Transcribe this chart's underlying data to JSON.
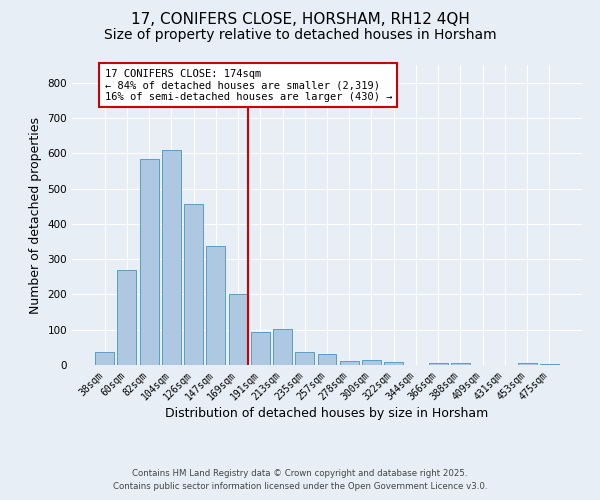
{
  "title": "17, CONIFERS CLOSE, HORSHAM, RH12 4QH",
  "subtitle": "Size of property relative to detached houses in Horsham",
  "xlabel": "Distribution of detached houses by size in Horsham",
  "ylabel": "Number of detached properties",
  "bar_labels": [
    "38sqm",
    "60sqm",
    "82sqm",
    "104sqm",
    "126sqm",
    "147sqm",
    "169sqm",
    "191sqm",
    "213sqm",
    "235sqm",
    "257sqm",
    "278sqm",
    "300sqm",
    "322sqm",
    "344sqm",
    "366sqm",
    "388sqm",
    "409sqm",
    "431sqm",
    "453sqm",
    "475sqm"
  ],
  "bar_values": [
    38,
    268,
    585,
    610,
    457,
    338,
    200,
    93,
    103,
    38,
    32,
    12,
    13,
    8,
    0,
    5,
    7,
    0,
    0,
    5,
    3
  ],
  "bar_color": "#adc8e0",
  "bar_edge_color": "#5a9dc8",
  "vline_index": 6,
  "vline_color": "#cc0000",
  "annotation_text": "17 CONIFERS CLOSE: 174sqm\n← 84% of detached houses are smaller (2,319)\n16% of semi-detached houses are larger (430) →",
  "annotation_box_facecolor": "#ffffff",
  "annotation_box_edgecolor": "#cc0000",
  "ylim": [
    0,
    850
  ],
  "yticks": [
    0,
    100,
    200,
    300,
    400,
    500,
    600,
    700,
    800
  ],
  "bg_color": "#e8eef5",
  "plot_bg_color": "#e8eef5",
  "footer_line1": "Contains HM Land Registry data © Crown copyright and database right 2025.",
  "footer_line2": "Contains public sector information licensed under the Open Government Licence v3.0.",
  "title_fontsize": 11,
  "subtitle_fontsize": 10,
  "tick_fontsize": 7,
  "ylabel_fontsize": 9,
  "xlabel_fontsize": 9,
  "annotation_fontsize": 7.5,
  "footer_fontsize": 6.2
}
